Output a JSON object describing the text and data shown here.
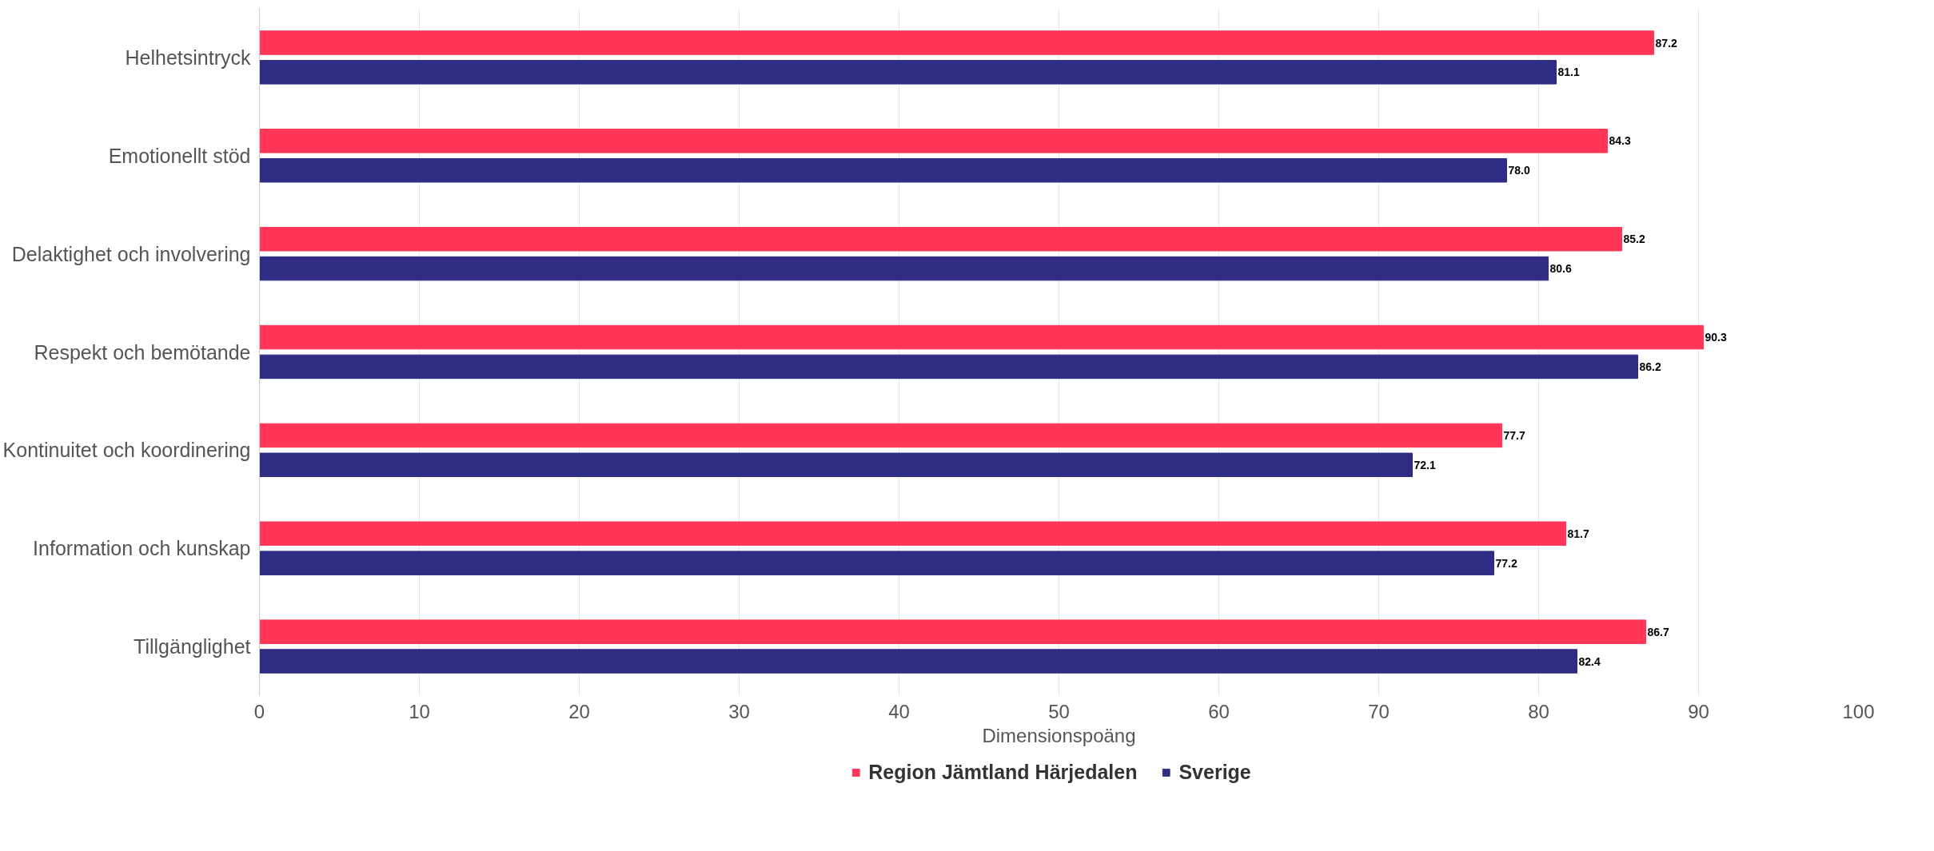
{
  "chart_data": {
    "type": "bar",
    "orientation": "horizontal",
    "xlabel": "Dimensionspoäng",
    "categories": [
      "Helhetsintryck",
      "Emotionellt stöd",
      "Delaktighet och involvering",
      "Respekt och bemötande",
      "Kontinuitet och koordinering",
      "Information och kunskap",
      "Tillgänglighet"
    ],
    "series": [
      {
        "name": "Region Jämtland Härjedalen",
        "color": "#ff3657",
        "values": [
          87.2,
          84.3,
          85.2,
          90.3,
          77.7,
          81.7,
          86.7
        ],
        "value_labels": [
          "87.2",
          "84.3",
          "85.2",
          "90.3",
          "77.7",
          "81.7",
          "86.7"
        ]
      },
      {
        "name": "Sverige",
        "color": "#2e2d83",
        "values": [
          81.1,
          78.0,
          80.6,
          86.2,
          72.1,
          77.2,
          82.4
        ],
        "value_labels": [
          "81.1",
          "78.0",
          "80.6",
          "86.2",
          "72.1",
          "77.2",
          "82.4"
        ]
      }
    ],
    "xlim": [
      0,
      100
    ],
    "xticks": [
      0,
      10,
      20,
      30,
      40,
      50,
      60,
      70,
      80,
      90,
      100
    ],
    "grid": "x",
    "legend": "bottom"
  }
}
